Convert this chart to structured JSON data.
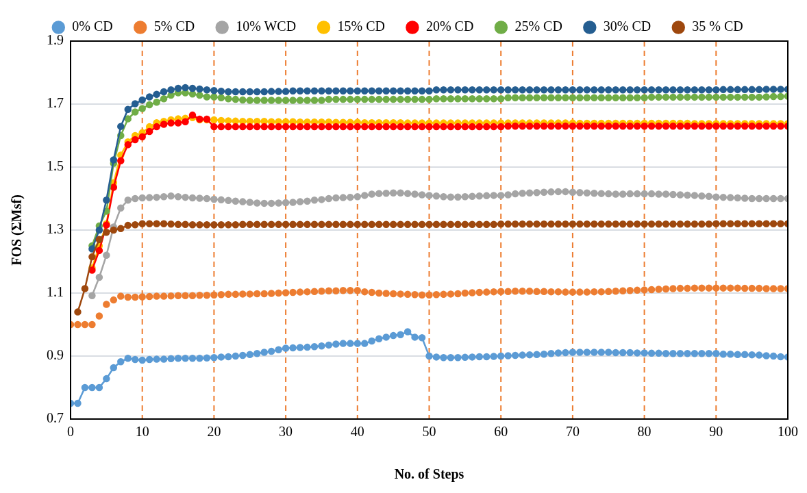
{
  "chart_data": {
    "type": "line",
    "xlabel": "No. of Steps",
    "ylabel": "FOS (ΣMsf)",
    "x": [
      0,
      1,
      2,
      3,
      4,
      5,
      6,
      7,
      8,
      9,
      10,
      11,
      12,
      13,
      14,
      15,
      16,
      17,
      18,
      19,
      20,
      21,
      22,
      23,
      24,
      25,
      26,
      27,
      28,
      29,
      30,
      31,
      32,
      33,
      34,
      35,
      36,
      37,
      38,
      39,
      40,
      41,
      42,
      43,
      44,
      45,
      46,
      47,
      48,
      49,
      50,
      51,
      52,
      53,
      54,
      55,
      56,
      57,
      58,
      59,
      60,
      61,
      62,
      63,
      64,
      65,
      66,
      67,
      68,
      69,
      70,
      71,
      72,
      73,
      74,
      75,
      76,
      77,
      78,
      79,
      80,
      81,
      82,
      83,
      84,
      85,
      86,
      87,
      88,
      89,
      90,
      91,
      92,
      93,
      94,
      95,
      96,
      97,
      98,
      99,
      100
    ],
    "xlim": [
      0,
      100
    ],
    "xticks": [
      0,
      10,
      20,
      30,
      40,
      50,
      60,
      70,
      80,
      90,
      100
    ],
    "ylim": [
      0.7,
      1.9
    ],
    "yticks": [
      0.7,
      0.9,
      1.1,
      1.3,
      1.5,
      1.7,
      1.9
    ],
    "grid": "y",
    "legend": "top",
    "marker": "circle",
    "line_style": "solid",
    "ref_lines": [
      {
        "axis": "x",
        "value": 10,
        "color": "#ed7d31",
        "line_style": "dashed"
      },
      {
        "axis": "x",
        "value": 20,
        "color": "#ed7d31",
        "line_style": "dashed"
      },
      {
        "axis": "x",
        "value": 30,
        "color": "#ed7d31",
        "line_style": "dashed"
      },
      {
        "axis": "x",
        "value": 40,
        "color": "#ed7d31",
        "line_style": "dashed"
      },
      {
        "axis": "x",
        "value": 50,
        "color": "#ed7d31",
        "line_style": "dashed"
      },
      {
        "axis": "x",
        "value": 60,
        "color": "#ed7d31",
        "line_style": "dashed"
      },
      {
        "axis": "x",
        "value": 70,
        "color": "#ed7d31",
        "line_style": "dashed"
      },
      {
        "axis": "x",
        "value": 80,
        "color": "#ed7d31",
        "line_style": "dashed"
      },
      {
        "axis": "x",
        "value": 90,
        "color": "#ed7d31",
        "line_style": "dashed"
      }
    ],
    "series": [
      {
        "name": "0% CD",
        "color": "#5b9bd5",
        "values": [
          0.75,
          0.75,
          0.8,
          0.8,
          0.8,
          0.828,
          0.863,
          0.882,
          0.893,
          0.889,
          0.887,
          0.889,
          0.89,
          0.89,
          0.892,
          0.893,
          0.893,
          0.893,
          0.893,
          0.894,
          0.895,
          0.897,
          0.898,
          0.9,
          0.902,
          0.905,
          0.908,
          0.912,
          0.915,
          0.92,
          0.925,
          0.926,
          0.927,
          0.928,
          0.93,
          0.932,
          0.935,
          0.938,
          0.94,
          0.94,
          0.94,
          0.94,
          0.948,
          0.955,
          0.96,
          0.965,
          0.968,
          0.977,
          0.96,
          0.958,
          0.9,
          0.897,
          0.895,
          0.895,
          0.895,
          0.896,
          0.897,
          0.898,
          0.898,
          0.899,
          0.9,
          0.901,
          0.902,
          0.903,
          0.904,
          0.905,
          0.906,
          0.908,
          0.91,
          0.911,
          0.912,
          0.912,
          0.912,
          0.912,
          0.912,
          0.912,
          0.911,
          0.911,
          0.911,
          0.91,
          0.91,
          0.909,
          0.909,
          0.908,
          0.908,
          0.908,
          0.908,
          0.908,
          0.908,
          0.908,
          0.908,
          0.906,
          0.906,
          0.905,
          0.905,
          0.904,
          0.903,
          0.901,
          0.9,
          0.898,
          0.897
        ]
      },
      {
        "name": "5% CD",
        "type": "scatter",
        "color": "#ed7d31",
        "values": [
          1,
          1,
          1,
          1,
          1.027,
          1.064,
          1.078,
          1.09,
          1.087,
          1.087,
          1.088,
          1.089,
          1.09,
          1.09,
          1.091,
          1.092,
          1.092,
          1.092,
          1.093,
          1.093,
          1.094,
          1.095,
          1.096,
          1.096,
          1.097,
          1.097,
          1.098,
          1.098,
          1.099,
          1.1,
          1.101,
          1.102,
          1.103,
          1.104,
          1.105,
          1.106,
          1.107,
          1.107,
          1.108,
          1.108,
          1.108,
          1.104,
          1.102,
          1.1,
          1.099,
          1.098,
          1.097,
          1.096,
          1.095,
          1.094,
          1.094,
          1.095,
          1.096,
          1.097,
          1.098,
          1.1,
          1.101,
          1.102,
          1.103,
          1.104,
          1.105,
          1.105,
          1.106,
          1.106,
          1.106,
          1.105,
          1.105,
          1.104,
          1.104,
          1.103,
          1.103,
          1.103,
          1.103,
          1.104,
          1.104,
          1.105,
          1.106,
          1.107,
          1.108,
          1.109,
          1.11,
          1.111,
          1.112,
          1.113,
          1.114,
          1.115,
          1.115,
          1.116,
          1.116,
          1.116,
          1.116,
          1.116,
          1.116,
          1.116,
          1.115,
          1.115,
          1.115,
          1.114,
          1.114,
          1.114,
          1.114
        ]
      },
      {
        "name": "10% WCD",
        "color": "#a5a5a5",
        "values": [
          null,
          null,
          null,
          1.092,
          1.15,
          1.22,
          1.31,
          1.37,
          1.395,
          1.4,
          1.402,
          1.403,
          1.404,
          1.406,
          1.408,
          1.406,
          1.404,
          1.402,
          1.401,
          1.4,
          1.398,
          1.396,
          1.394,
          1.392,
          1.39,
          1.388,
          1.386,
          1.385,
          1.385,
          1.386,
          1.387,
          1.388,
          1.39,
          1.392,
          1.395,
          1.397,
          1.4,
          1.402,
          1.403,
          1.404,
          1.406,
          1.41,
          1.414,
          1.416,
          1.417,
          1.418,
          1.418,
          1.416,
          1.414,
          1.412,
          1.41,
          1.408,
          1.406,
          1.405,
          1.405,
          1.406,
          1.407,
          1.408,
          1.409,
          1.41,
          1.41,
          1.412,
          1.415,
          1.417,
          1.418,
          1.419,
          1.42,
          1.421,
          1.422,
          1.422,
          1.42,
          1.419,
          1.418,
          1.417,
          1.416,
          1.415,
          1.414,
          1.414,
          1.415,
          1.415,
          1.415,
          1.415,
          1.414,
          1.414,
          1.413,
          1.412,
          1.411,
          1.41,
          1.408,
          1.407,
          1.405,
          1.404,
          1.403,
          1.402,
          1.401,
          1.4,
          1.4,
          1.4,
          1.4,
          1.4,
          1.4
        ]
      },
      {
        "name": "15% CD",
        "color": "#ffc000",
        "values": [
          null,
          null,
          null,
          1.18,
          1.25,
          1.32,
          1.45,
          1.538,
          1.58,
          1.6,
          1.609,
          1.628,
          1.641,
          1.645,
          1.65,
          1.653,
          1.655,
          1.657,
          1.65,
          1.65,
          1.65,
          1.648,
          1.647,
          1.646,
          1.645,
          1.645,
          1.645,
          1.645,
          1.644,
          1.644,
          1.644,
          1.644,
          1.643,
          1.643,
          1.643,
          1.643,
          1.643,
          1.642,
          1.642,
          1.642,
          1.642,
          1.641,
          1.641,
          1.641,
          1.641,
          1.641,
          1.641,
          1.64,
          1.64,
          1.64,
          1.64,
          1.64,
          1.64,
          1.64,
          1.64,
          1.64,
          1.64,
          1.64,
          1.64,
          1.64,
          1.64,
          1.64,
          1.64,
          1.64,
          1.64,
          1.64,
          1.64,
          1.64,
          1.64,
          1.64,
          1.64,
          1.639,
          1.639,
          1.639,
          1.639,
          1.639,
          1.639,
          1.639,
          1.639,
          1.639,
          1.639,
          1.639,
          1.639,
          1.639,
          1.639,
          1.639,
          1.639,
          1.638,
          1.638,
          1.638,
          1.638,
          1.638,
          1.638,
          1.638,
          1.638,
          1.638,
          1.638,
          1.638,
          1.638,
          1.638,
          1.638
        ]
      },
      {
        "name": "20% CD",
        "color": "#ff0000",
        "values": [
          null,
          null,
          null,
          1.173,
          1.235,
          1.316,
          1.436,
          1.52,
          1.571,
          1.587,
          1.596,
          1.613,
          1.628,
          1.636,
          1.64,
          1.64,
          1.644,
          1.665,
          1.652,
          1.652,
          1.628,
          1.628,
          1.628,
          1.628,
          1.628,
          1.628,
          1.628,
          1.628,
          1.628,
          1.628,
          1.628,
          1.628,
          1.628,
          1.628,
          1.628,
          1.628,
          1.628,
          1.628,
          1.628,
          1.628,
          1.628,
          1.628,
          1.628,
          1.628,
          1.628,
          1.628,
          1.628,
          1.628,
          1.628,
          1.628,
          1.628,
          1.628,
          1.628,
          1.628,
          1.628,
          1.628,
          1.628,
          1.628,
          1.628,
          1.628,
          1.628,
          1.63,
          1.63,
          1.63,
          1.63,
          1.63,
          1.63,
          1.63,
          1.63,
          1.63,
          1.63,
          1.63,
          1.63,
          1.63,
          1.63,
          1.63,
          1.63,
          1.63,
          1.63,
          1.63,
          1.63,
          1.63,
          1.63,
          1.63,
          1.63,
          1.63,
          1.63,
          1.63,
          1.63,
          1.63,
          1.63,
          1.63,
          1.63,
          1.63,
          1.63,
          1.63,
          1.63,
          1.63,
          1.63,
          1.63,
          1.63
        ]
      },
      {
        "name": "25% CD",
        "color": "#70ad47",
        "values": [
          null,
          null,
          null,
          1.25,
          1.313,
          1.36,
          1.512,
          1.6,
          1.653,
          1.675,
          1.686,
          1.698,
          1.706,
          1.717,
          1.728,
          1.736,
          1.736,
          1.732,
          1.728,
          1.723,
          1.723,
          1.72,
          1.717,
          1.715,
          1.713,
          1.712,
          1.712,
          1.712,
          1.712,
          1.712,
          1.712,
          1.712,
          1.712,
          1.712,
          1.712,
          1.712,
          1.715,
          1.715,
          1.715,
          1.715,
          1.715,
          1.715,
          1.715,
          1.715,
          1.715,
          1.715,
          1.715,
          1.715,
          1.715,
          1.715,
          1.715,
          1.717,
          1.717,
          1.717,
          1.717,
          1.717,
          1.717,
          1.717,
          1.717,
          1.717,
          1.717,
          1.72,
          1.72,
          1.72,
          1.72,
          1.72,
          1.72,
          1.72,
          1.72,
          1.72,
          1.72,
          1.72,
          1.72,
          1.72,
          1.72,
          1.72,
          1.72,
          1.72,
          1.72,
          1.72,
          1.72,
          1.722,
          1.722,
          1.722,
          1.722,
          1.722,
          1.722,
          1.722,
          1.722,
          1.722,
          1.722,
          1.722,
          1.722,
          1.722,
          1.722,
          1.722,
          1.722,
          1.723,
          1.724,
          1.724,
          1.725
        ]
      },
      {
        "name": "30% CD",
        "color": "#255e91",
        "values": [
          null,
          null,
          null,
          1.24,
          1.3,
          1.395,
          1.523,
          1.629,
          1.683,
          1.701,
          1.713,
          1.723,
          1.731,
          1.739,
          1.745,
          1.75,
          1.752,
          1.75,
          1.748,
          1.745,
          1.743,
          1.741,
          1.739,
          1.739,
          1.739,
          1.739,
          1.739,
          1.739,
          1.74,
          1.74,
          1.74,
          1.742,
          1.742,
          1.742,
          1.742,
          1.742,
          1.742,
          1.742,
          1.742,
          1.742,
          1.742,
          1.742,
          1.742,
          1.742,
          1.742,
          1.742,
          1.742,
          1.742,
          1.742,
          1.742,
          1.742,
          1.745,
          1.745,
          1.745,
          1.745,
          1.745,
          1.745,
          1.745,
          1.745,
          1.745,
          1.745,
          1.745,
          1.745,
          1.745,
          1.745,
          1.745,
          1.745,
          1.745,
          1.745,
          1.745,
          1.745,
          1.745,
          1.745,
          1.745,
          1.745,
          1.745,
          1.745,
          1.745,
          1.745,
          1.745,
          1.745,
          1.745,
          1.745,
          1.745,
          1.745,
          1.745,
          1.745,
          1.745,
          1.745,
          1.745,
          1.745,
          1.746,
          1.746,
          1.746,
          1.746,
          1.746,
          1.746,
          1.747,
          1.747,
          1.747,
          1.747
        ]
      },
      {
        "name": "35 % CD",
        "color": "#9e480e",
        "values": [
          null,
          1.04,
          1.114,
          1.215,
          1.27,
          1.293,
          1.3,
          1.305,
          1.315,
          1.317,
          1.32,
          1.32,
          1.32,
          1.32,
          1.319,
          1.318,
          1.318,
          1.317,
          1.317,
          1.317,
          1.317,
          1.317,
          1.317,
          1.317,
          1.318,
          1.318,
          1.318,
          1.318,
          1.318,
          1.318,
          1.318,
          1.318,
          1.318,
          1.318,
          1.318,
          1.318,
          1.318,
          1.318,
          1.318,
          1.318,
          1.318,
          1.318,
          1.318,
          1.318,
          1.318,
          1.318,
          1.318,
          1.318,
          1.318,
          1.318,
          1.318,
          1.318,
          1.318,
          1.318,
          1.318,
          1.318,
          1.318,
          1.318,
          1.318,
          1.318,
          1.319,
          1.319,
          1.319,
          1.319,
          1.319,
          1.319,
          1.319,
          1.319,
          1.319,
          1.319,
          1.319,
          1.319,
          1.319,
          1.319,
          1.319,
          1.319,
          1.319,
          1.319,
          1.319,
          1.319,
          1.319,
          1.319,
          1.319,
          1.319,
          1.319,
          1.319,
          1.319,
          1.319,
          1.319,
          1.319,
          1.32,
          1.32,
          1.32,
          1.32,
          1.32,
          1.32,
          1.32,
          1.32,
          1.32,
          1.32,
          1.32
        ]
      }
    ]
  }
}
